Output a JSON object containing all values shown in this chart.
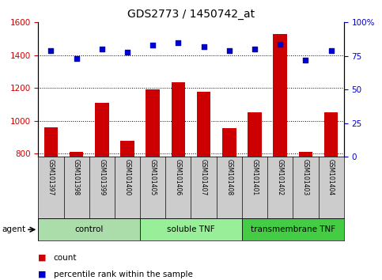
{
  "title": "GDS2773 / 1450742_at",
  "samples": [
    "GSM101397",
    "GSM101398",
    "GSM101399",
    "GSM101400",
    "GSM101405",
    "GSM101406",
    "GSM101407",
    "GSM101408",
    "GSM101401",
    "GSM101402",
    "GSM101403",
    "GSM101404"
  ],
  "counts": [
    960,
    808,
    1110,
    880,
    1190,
    1235,
    1175,
    955,
    1050,
    1530,
    808,
    1050
  ],
  "percentiles": [
    79,
    73,
    80,
    78,
    83,
    85,
    82,
    79,
    80,
    84,
    72,
    79
  ],
  "groups": [
    {
      "label": "control",
      "start": 0,
      "end": 4,
      "color": "#aaddaa"
    },
    {
      "label": "soluble TNF",
      "start": 4,
      "end": 8,
      "color": "#99ee99"
    },
    {
      "label": "transmembrane TNF",
      "start": 8,
      "end": 12,
      "color": "#44cc44"
    }
  ],
  "ylim_left": [
    780,
    1600
  ],
  "ylim_right": [
    0,
    100
  ],
  "yticks_left": [
    800,
    1000,
    1200,
    1400,
    1600
  ],
  "yticks_right": [
    0,
    25,
    50,
    75,
    100
  ],
  "bar_color": "#cc0000",
  "dot_color": "#0000cc",
  "background_color": "#ffffff",
  "label_area_color": "#cccccc",
  "legend_count_color": "#cc0000",
  "legend_dot_color": "#0000cc",
  "right_axis_label": "100%"
}
